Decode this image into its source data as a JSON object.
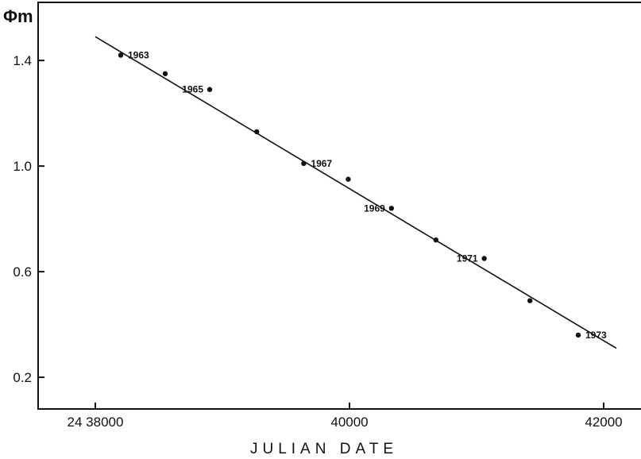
{
  "chart_data": {
    "type": "scatter",
    "xlabel": "JULIAN DATE",
    "ylabel": "Φm",
    "xlim": [
      2437550,
      2442350
    ],
    "ylim": [
      0.08,
      1.62
    ],
    "x_ticks": [
      {
        "value": 2438000,
        "label": "24 38000"
      },
      {
        "value": 2440000,
        "label": "40000"
      },
      {
        "value": 2442000,
        "label": "42000"
      }
    ],
    "y_ticks": [
      {
        "value": 0.2,
        "label": "0.2"
      },
      {
        "value": 0.6,
        "label": "0.6"
      },
      {
        "value": 1.0,
        "label": "1.0"
      },
      {
        "value": 1.4,
        "label": "1.4"
      }
    ],
    "grid": false,
    "series": [
      {
        "points": [
          {
            "x": 2438200,
            "y": 1.42,
            "label": "1963"
          },
          {
            "x": 2438550,
            "y": 1.35,
            "label": ""
          },
          {
            "x": 2438900,
            "y": 1.29,
            "label": "1965"
          },
          {
            "x": 2439270,
            "y": 1.13,
            "label": ""
          },
          {
            "x": 2439640,
            "y": 1.01,
            "label": "1967"
          },
          {
            "x": 2439990,
            "y": 0.95,
            "label": ""
          },
          {
            "x": 2440330,
            "y": 0.84,
            "label": "1969"
          },
          {
            "x": 2440680,
            "y": 0.72,
            "label": ""
          },
          {
            "x": 2441060,
            "y": 0.65,
            "label": "1971"
          },
          {
            "x": 2441420,
            "y": 0.49,
            "label": ""
          },
          {
            "x": 2441800,
            "y": 0.36,
            "label": "1973"
          }
        ]
      }
    ],
    "fit_line": {
      "x": [
        2438000,
        2442100
      ],
      "y": [
        1.49,
        0.31
      ]
    }
  }
}
